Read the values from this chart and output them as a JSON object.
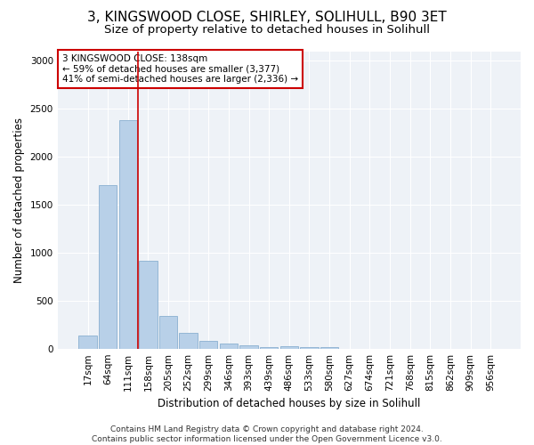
{
  "title1": "3, KINGSWOOD CLOSE, SHIRLEY, SOLIHULL, B90 3ET",
  "title2": "Size of property relative to detached houses in Solihull",
  "xlabel": "Distribution of detached houses by size in Solihull",
  "ylabel": "Number of detached properties",
  "footer1": "Contains HM Land Registry data © Crown copyright and database right 2024.",
  "footer2": "Contains public sector information licensed under the Open Government Licence v3.0.",
  "bar_labels": [
    "17sqm",
    "64sqm",
    "111sqm",
    "158sqm",
    "205sqm",
    "252sqm",
    "299sqm",
    "346sqm",
    "393sqm",
    "439sqm",
    "486sqm",
    "533sqm",
    "580sqm",
    "627sqm",
    "674sqm",
    "721sqm",
    "768sqm",
    "815sqm",
    "862sqm",
    "909sqm",
    "956sqm"
  ],
  "bar_values": [
    135,
    1700,
    2380,
    920,
    340,
    160,
    85,
    50,
    30,
    20,
    25,
    20,
    15,
    0,
    0,
    0,
    0,
    0,
    0,
    0,
    0
  ],
  "bar_color": "#b8d0e8",
  "bar_edge_color": "#8ab0d0",
  "vline_color": "#cc0000",
  "vline_x_index": 2.5,
  "annotation_text": "3 KINGSWOOD CLOSE: 138sqm\n← 59% of detached houses are smaller (3,377)\n41% of semi-detached houses are larger (2,336) →",
  "annotation_box_color": "#ffffff",
  "annotation_box_edge": "#cc0000",
  "ylim": [
    0,
    3100
  ],
  "yticks": [
    0,
    500,
    1000,
    1500,
    2000,
    2500,
    3000
  ],
  "plot_bg_color": "#eef2f7",
  "title1_fontsize": 11,
  "title2_fontsize": 9.5,
  "axis_label_fontsize": 8.5,
  "tick_fontsize": 7.5,
  "annotation_fontsize": 7.5,
  "footer_fontsize": 6.5
}
